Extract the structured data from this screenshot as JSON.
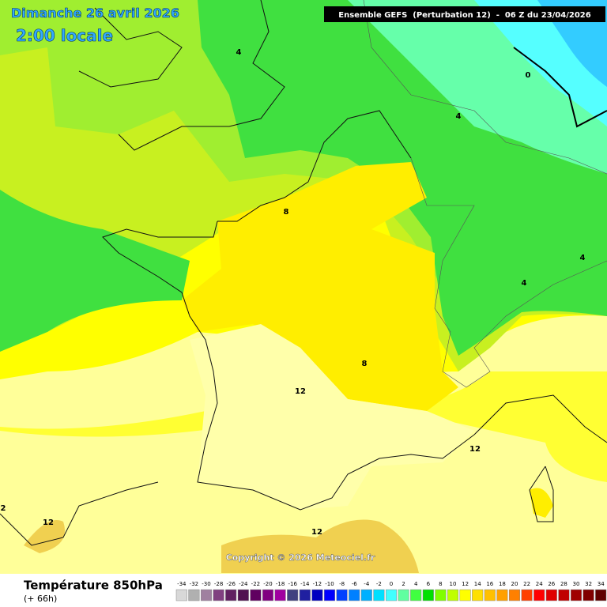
{
  "map": {
    "title": "Dimanche 26 avril 2026",
    "subtitle": "2:00 locale",
    "header": "Ensemble GEFS  (Perturbation 12)  -  06 Z du 23/04/2026",
    "copyright": "Copyright © 2026 Meteociel.fr",
    "contour_labels": [
      4,
      0,
      4,
      8,
      4,
      4,
      8,
      12,
      12,
      12,
      12,
      2
    ],
    "legend": {
      "title": "Température 850hPa",
      "subtitle": "(+ 66h)",
      "scale": [
        -34,
        -32,
        -30,
        -28,
        -26,
        -24,
        -22,
        -20,
        -18,
        -16,
        -14,
        -12,
        -10,
        -8,
        -6,
        -4,
        -2,
        0,
        2,
        4,
        6,
        8,
        10,
        12,
        14,
        16,
        18,
        20,
        22,
        24,
        26,
        28,
        30,
        32,
        34
      ],
      "colors": [
        "#d8d8d8",
        "#b0b0b0",
        "#a080a0",
        "#804080",
        "#602060",
        "#501050",
        "#600060",
        "#800080",
        "#a000a0",
        "#404080",
        "#2020a0",
        "#0000c0",
        "#0000ff",
        "#0040ff",
        "#0080ff",
        "#00b0ff",
        "#00e0ff",
        "#40ffff",
        "#60ffa0",
        "#40ff40",
        "#00e000",
        "#80ff00",
        "#c0ff00",
        "#ffff00",
        "#ffe000",
        "#ffc000",
        "#ffa000",
        "#ff8000",
        "#ff4000",
        "#ff0000",
        "#e00000",
        "#c00000",
        "#a00000",
        "#800000",
        "#600000"
      ]
    }
  }
}
